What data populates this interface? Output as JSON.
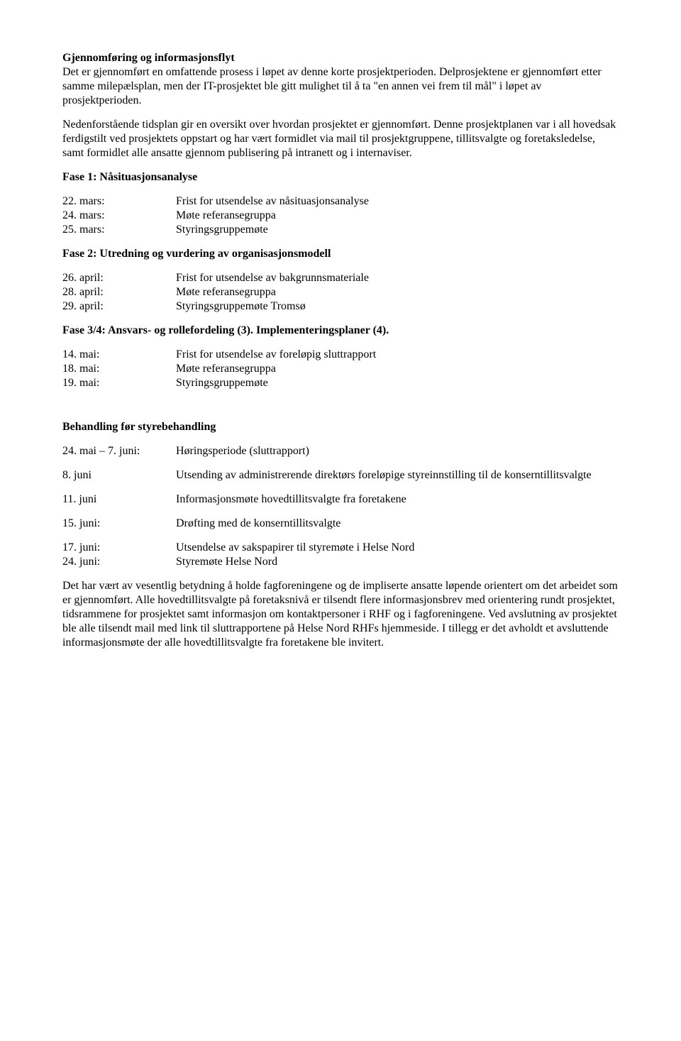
{
  "h1": "Gjennomføring og informasjonsflyt",
  "p1": "Det er gjennomført en omfattende prosess i løpet av denne korte prosjektperioden. Delprosjektene er gjennomført etter samme milepælsplan, men der IT-prosjektet ble gitt mulighet til å ta \"en annen vei frem til mål\" i løpet av prosjektperioden.",
  "p2": "Nedenforstående tidsplan gir en oversikt over hvordan prosjektet er gjennomført. Denne prosjektplanen var i all hovedsak ferdigstilt ved prosjektets oppstart og har vært formidlet via mail til prosjektgruppene, tillitsvalgte og foretaksledelse, samt formidlet alle ansatte gjennom publisering på intranett og i internaviser.",
  "fase1_title": "Fase 1: Nåsituasjonsanalyse",
  "fase1": [
    {
      "d": "22. mars:",
      "t": "Frist for utsendelse av nåsituasjonsanalyse"
    },
    {
      "d": "24. mars:",
      "t": "Møte referansegruppa"
    },
    {
      "d": "25. mars:",
      "t": "Styringsgruppemøte"
    }
  ],
  "fase2_title": "Fase 2: Utredning og vurdering av organisasjonsmodell",
  "fase2": [
    {
      "d": "26. april:",
      "t": "Frist for utsendelse av bakgrunnsmateriale"
    },
    {
      "d": "28. april:",
      "t": "Møte referansegruppa"
    },
    {
      "d": "29. april:",
      "t": "Styringsgruppemøte Tromsø"
    }
  ],
  "fase34_title": "Fase 3/4: Ansvars- og rollefordeling (3). Implementeringsplaner (4).",
  "fase34": [
    {
      "d": "14. mai:",
      "t": "Frist for utsendelse av foreløpig sluttrapport"
    },
    {
      "d": "18. mai:",
      "t": "Møte referansegruppa"
    },
    {
      "d": "19. mai:",
      "t": "Styringsgruppemøte"
    }
  ],
  "beh_title": "Behandling før styrebehandling",
  "beh": [
    {
      "d": "24. mai – 7. juni:",
      "t": "Høringsperiode (sluttrapport)"
    },
    {
      "d": "8. juni",
      "t": "Utsending av administrerende direktørs foreløpige styreinnstilling til de konserntillitsvalgte"
    },
    {
      "d": "11. juni",
      "t": "Informasjonsmøte hovedtillitsvalgte fra foretakene"
    },
    {
      "d": "15. juni:",
      "t": "Drøfting med de konserntillitsvalgte"
    },
    {
      "d": "17. juni:",
      "t": "Utsendelse av sakspapirer til styremøte i Helse Nord"
    },
    {
      "d": "24. juni:",
      "t": "Styremøte Helse Nord"
    }
  ],
  "p3": "Det har vært av vesentlig betydning å holde fagforeningene og de impliserte ansatte løpende orientert om det arbeidet som er gjennomført. Alle hovedtillitsvalgte på foretaksnivå er tilsendt flere informasjonsbrev med orientering rundt prosjektet, tidsrammene for prosjektet samt informasjon om kontaktpersoner i RHF og i fagforeningene. Ved avslutning av prosjektet ble alle tilsendt mail med link til sluttrapportene på Helse Nord RHFs hjemmeside. I tillegg er det avholdt et avsluttende informasjonsmøte der alle hovedtillitsvalgte fra foretakene ble invitert."
}
